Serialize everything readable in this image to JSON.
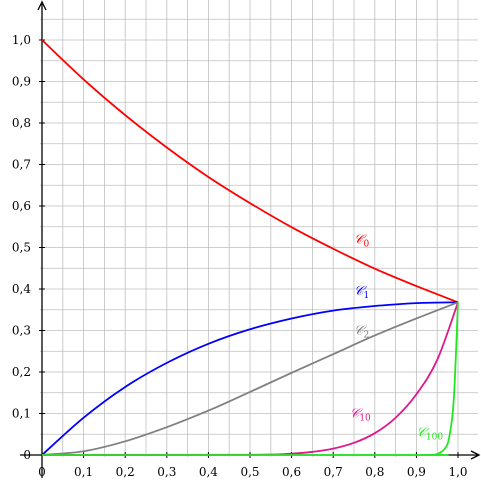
{
  "chart_data": {
    "type": "line",
    "title": "",
    "xlabel": "",
    "ylabel": "",
    "xlim": [
      0,
      1.0
    ],
    "ylim": [
      0,
      1.05
    ],
    "grid": true,
    "grid_minor_step_x": 0.05,
    "grid_minor_step_y": 0.05,
    "axis_color": "#000000",
    "grid_color": "#bfbfbf",
    "x_ticks": [
      {
        "value": 0,
        "label": "0"
      },
      {
        "value": 0.1,
        "label": "0,1"
      },
      {
        "value": 0.2,
        "label": "0,2"
      },
      {
        "value": 0.3,
        "label": "0,3"
      },
      {
        "value": 0.4,
        "label": "0,4"
      },
      {
        "value": 0.5,
        "label": "0,5"
      },
      {
        "value": 0.6,
        "label": "0,6"
      },
      {
        "value": 0.7,
        "label": "0,7"
      },
      {
        "value": 0.8,
        "label": "0,8"
      },
      {
        "value": 0.9,
        "label": "0,9"
      },
      {
        "value": 1.0,
        "label": "1,0"
      }
    ],
    "y_ticks": [
      {
        "value": 0,
        "label": "0"
      },
      {
        "value": 0.1,
        "label": "0,1"
      },
      {
        "value": 0.2,
        "label": "0,2"
      },
      {
        "value": 0.3,
        "label": "0,3"
      },
      {
        "value": 0.4,
        "label": "0,4"
      },
      {
        "value": 0.5,
        "label": "0,5"
      },
      {
        "value": 0.6,
        "label": "0,6"
      },
      {
        "value": 0.7,
        "label": "0,7"
      },
      {
        "value": 0.8,
        "label": "0,8"
      },
      {
        "value": 0.9,
        "label": "0,9"
      },
      {
        "value": 1.0,
        "label": "1,0"
      }
    ],
    "series": [
      {
        "name": "𝒞0",
        "symbol": "𝒞",
        "subscript": "0",
        "color": "#ff0000",
        "x": [
          0,
          0.1,
          0.2,
          0.3,
          0.4,
          0.5,
          0.6,
          0.7,
          0.8,
          0.9,
          1.0
        ],
        "y": [
          1.0,
          0.905,
          0.819,
          0.741,
          0.67,
          0.607,
          0.549,
          0.497,
          0.449,
          0.407,
          0.368
        ],
        "label_at": {
          "x": 0.75,
          "y": 0.51
        }
      },
      {
        "name": "𝒞1",
        "symbol": "𝒞",
        "subscript": "1",
        "color": "#0000ff",
        "x": [
          0,
          0.1,
          0.2,
          0.3,
          0.4,
          0.5,
          0.6,
          0.7,
          0.8,
          0.9,
          1.0
        ],
        "y": [
          0,
          0.09,
          0.164,
          0.222,
          0.268,
          0.303,
          0.329,
          0.348,
          0.359,
          0.366,
          0.368
        ],
        "label_at": {
          "x": 0.75,
          "y": 0.385
        }
      },
      {
        "name": "𝒞2",
        "symbol": "𝒞",
        "subscript": "2",
        "color": "#808080",
        "x": [
          0,
          0.1,
          0.2,
          0.3,
          0.4,
          0.5,
          0.6,
          0.7,
          0.8,
          0.9,
          1.0
        ],
        "y": [
          0,
          0.009,
          0.033,
          0.067,
          0.107,
          0.152,
          0.198,
          0.243,
          0.288,
          0.329,
          0.368
        ],
        "label_at": {
          "x": 0.75,
          "y": 0.29
        }
      },
      {
        "name": "𝒞10",
        "symbol": "𝒞",
        "subscript": "10",
        "color": "#e0168c",
        "x": [
          0,
          0.5,
          0.6,
          0.65,
          0.7,
          0.75,
          0.8,
          0.85,
          0.9,
          0.95,
          1.0
        ],
        "y": [
          0,
          0.0006,
          0.0033,
          0.0075,
          0.0154,
          0.0293,
          0.0526,
          0.0898,
          0.1464,
          0.2291,
          0.368
        ],
        "label_at": {
          "x": 0.74,
          "y": 0.09
        }
      },
      {
        "name": "𝒞100",
        "symbol": "𝒞",
        "subscript": "100",
        "color": "#22e622",
        "x": [
          0,
          0.9,
          0.93,
          0.95,
          0.97,
          0.98,
          0.99,
          1.0
        ],
        "y": [
          0,
          0,
          0.0003,
          0.0022,
          0.0175,
          0.0488,
          0.1357,
          0.368
        ],
        "label_at": {
          "x": 0.9,
          "y": 0.045
        }
      }
    ]
  }
}
